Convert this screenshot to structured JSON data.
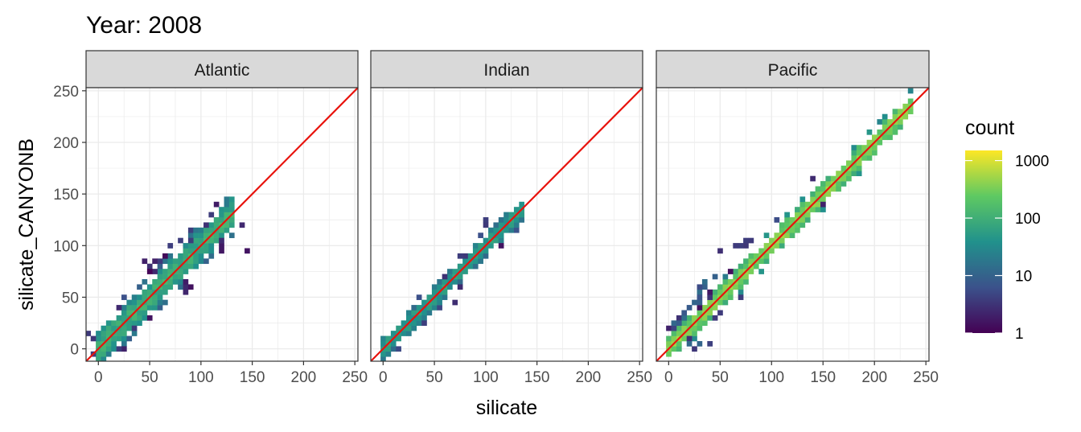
{
  "chart_data": {
    "type": "heatmap",
    "title": "Year: 2008",
    "xlabel": "silicate",
    "ylabel": "silicate_CANYONB",
    "xlim": [
      -12,
      253
    ],
    "ylim": [
      -12,
      253
    ],
    "x_ticks": [
      0,
      50,
      100,
      150,
      200,
      250
    ],
    "y_ticks": [
      0,
      50,
      100,
      150,
      200,
      250
    ],
    "bin_width": 5,
    "grid": true,
    "reference_line": {
      "slope": 1,
      "intercept": 0,
      "color": "#e8120c"
    },
    "legend": {
      "title": "count",
      "scale": "log10",
      "placement": "right",
      "breaks": [
        1,
        10,
        100,
        1000
      ],
      "break_labels": [
        "1",
        "10",
        "100",
        "1000"
      ],
      "range": [
        1,
        1500
      ]
    },
    "colormap": [
      "#440154",
      "#3b528b",
      "#21918c",
      "#5ec962",
      "#fde725"
    ],
    "panels": [
      {
        "name": "Atlantic",
        "ridge": [
          [
            0,
            100
          ],
          [
            130,
            100
          ]
        ],
        "spread": 9,
        "scatter": [
          [
            60,
            75,
            6
          ],
          [
            75,
            95,
            4
          ],
          [
            40,
            40,
            5
          ],
          [
            100,
            105,
            5
          ],
          [
            120,
            125,
            4
          ],
          [
            25,
            30,
            3
          ],
          [
            10,
            10,
            3
          ],
          [
            130,
            110,
            2
          ],
          [
            5,
            0,
            3
          ],
          [
            85,
            70,
            2
          ]
        ],
        "offridge": []
      },
      {
        "name": "Indian",
        "ridge": [
          [
            0,
            60
          ],
          [
            137,
            60
          ]
        ],
        "spread": 4,
        "scatter": [
          [
            80,
            80,
            3
          ],
          [
            110,
            110,
            3
          ],
          [
            40,
            40,
            3
          ],
          [
            60,
            62,
            2
          ]
        ],
        "offridge": []
      },
      {
        "name": "Pacific",
        "ridge": [
          [
            0,
            400
          ],
          [
            235,
            400
          ]
        ],
        "spread": 4,
        "scatter": [
          [
            20,
            20,
            3
          ],
          [
            10,
            15,
            4
          ],
          [
            40,
            45,
            3
          ],
          [
            60,
            62,
            2
          ],
          [
            150,
            150,
            2
          ]
        ],
        "offridge": [
          [
            [
              5,
              20
            ],
            [
              45,
              70
            ],
            3,
            [
              4,
              15
            ]
          ],
          [
            [
              55,
              95
            ],
            [
              80,
              105
            ],
            3,
            [
              2,
              4
            ]
          ],
          [
            [
              10,
              0
            ],
            [
              35,
              5
            ],
            2,
            [
              3,
              12
            ]
          ]
        ]
      }
    ]
  }
}
